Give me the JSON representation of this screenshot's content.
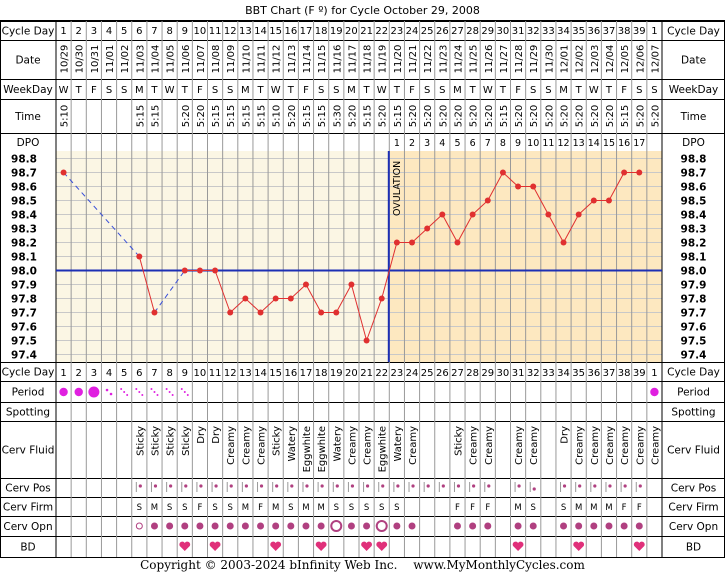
{
  "title": "BBT Chart (F º) for Cycle October 29, 2008",
  "row_labels": {
    "cycle_day": "Cycle Day",
    "date": "Date",
    "weekday": "WeekDay",
    "time": "Time",
    "dpo": "DPO",
    "period": "Period",
    "spotting": "Spotting",
    "cerv_fluid": "Cerv Fluid",
    "cerv_pos": "Cerv Pos",
    "cerv_firm": "Cerv Firm",
    "cerv_opn": "Cerv Opn",
    "bd": "BD"
  },
  "ovulation_label": "OVULATION",
  "colors": {
    "follicular_bg": "#fbf6e4",
    "luteal_bg": "#fde8c0",
    "grid": "#c8c8c8",
    "temp_line": "#e03030",
    "coverline": "#1c2fb4",
    "ovulation_line": "#1c2fb4",
    "period_dot": "#e020e0",
    "heart": "#e0307a",
    "symbol": "#b04080"
  },
  "chart_data": {
    "type": "line",
    "title": "BBT Chart (F º) for Cycle October 29, 2008",
    "ylim": [
      97.4,
      98.8
    ],
    "y_ticks": [
      "98.8",
      "98.7",
      "98.6",
      "98.5",
      "98.4",
      "98.3",
      "98.2",
      "98.1",
      "98.0",
      "97.9",
      "97.8",
      "97.7",
      "97.6",
      "97.5",
      "97.4"
    ],
    "coverline": 98.0,
    "ovulation_day": 22,
    "cycle_days": [
      "1",
      "2",
      "3",
      "4",
      "5",
      "6",
      "7",
      "8",
      "9",
      "10",
      "11",
      "12",
      "13",
      "14",
      "15",
      "16",
      "17",
      "18",
      "19",
      "20",
      "21",
      "22",
      "23",
      "24",
      "25",
      "26",
      "27",
      "28",
      "29",
      "30",
      "31",
      "32",
      "33",
      "34",
      "35",
      "36",
      "37",
      "38",
      "39",
      "1"
    ],
    "dates": [
      "10/29",
      "10/30",
      "10/31",
      "11/01",
      "11/02",
      "11/03",
      "11/04",
      "11/05",
      "11/06",
      "11/07",
      "11/08",
      "11/09",
      "11/10",
      "11/11",
      "11/12",
      "11/13",
      "11/14",
      "11/15",
      "11/16",
      "11/17",
      "11/18",
      "11/19",
      "11/20",
      "11/21",
      "11/22",
      "11/23",
      "11/24",
      "11/25",
      "11/26",
      "11/27",
      "11/28",
      "11/29",
      "11/30",
      "12/01",
      "12/02",
      "12/03",
      "12/04",
      "12/05",
      "12/06",
      "12/07"
    ],
    "weekdays": [
      "W",
      "T",
      "F",
      "S",
      "S",
      "M",
      "T",
      "W",
      "T",
      "F",
      "S",
      "S",
      "M",
      "T",
      "W",
      "T",
      "F",
      "S",
      "S",
      "M",
      "T",
      "W",
      "T",
      "F",
      "S",
      "S",
      "M",
      "T",
      "W",
      "T",
      "F",
      "S",
      "S",
      "M",
      "T",
      "W",
      "T",
      "F",
      "S",
      "S"
    ],
    "times": [
      "5:10",
      "",
      "",
      "",
      "",
      "5:15",
      "5:15",
      "",
      "5:20",
      "5:20",
      "5:15",
      "5:15",
      "5:15",
      "5:15",
      "5:10",
      "5:20",
      "5:15",
      "5:15",
      "5:30",
      "5:20",
      "5:15",
      "5:20",
      "5:15",
      "5:20",
      "5:20",
      "5:20",
      "5:20",
      "5:20",
      "5:20",
      "5:15",
      "5:20",
      "5:20",
      "5:20",
      "5:20",
      "5:20",
      "5:20",
      "5:20",
      "5:15",
      "5:20",
      "5:20"
    ],
    "dpo": [
      "",
      "",
      "",
      "",
      "",
      "",
      "",
      "",
      "",
      "",
      "",
      "",
      "",
      "",
      "",
      "",
      "",
      "",
      "",
      "",
      "",
      "",
      "1",
      "2",
      "3",
      "4",
      "5",
      "6",
      "7",
      "8",
      "9",
      "10",
      "11",
      "12",
      "13",
      "14",
      "15",
      "16",
      "17",
      ""
    ],
    "temps": [
      98.7,
      null,
      null,
      null,
      null,
      98.1,
      97.7,
      null,
      98.0,
      98.0,
      98.0,
      97.7,
      97.8,
      97.7,
      97.8,
      97.8,
      97.9,
      97.7,
      97.7,
      97.9,
      97.5,
      97.8,
      98.2,
      98.2,
      98.3,
      98.4,
      98.2,
      98.4,
      98.5,
      98.7,
      98.6,
      98.6,
      98.4,
      98.2,
      98.4,
      98.5,
      98.5,
      98.7,
      98.7,
      null
    ],
    "period": [
      "heavy",
      "heavy",
      "heavy",
      "light",
      "spot",
      "spot",
      "spot",
      "spot",
      "spot",
      "",
      "",
      "",
      "",
      "",
      "",
      "",
      "",
      "",
      "",
      "",
      "",
      "",
      "",
      "",
      "",
      "",
      "",
      "",
      "",
      "",
      "",
      "",
      "",
      "",
      "",
      "",
      "",
      "",
      "",
      "heavy"
    ],
    "cerv_fluid": [
      "",
      "",
      "",
      "",
      "",
      "Sticky",
      "Sticky",
      "Sticky",
      "Sticky",
      "Dry",
      "Dry",
      "Creamy",
      "Creamy",
      "Creamy",
      "Sticky",
      "Watery",
      "Eggwhite",
      "Eggwhite",
      "Watery",
      "Creamy",
      "Creamy",
      "Eggwhite",
      "Watery",
      "Creamy",
      "",
      "",
      "Sticky",
      "Creamy",
      "Creamy",
      "",
      "Creamy",
      "Creamy",
      "",
      "Dry",
      "Creamy",
      "Creamy",
      "Creamy",
      "Creamy",
      "Creamy",
      "Creamy"
    ],
    "cerv_pos": [
      "",
      "",
      "",
      "",
      "",
      "ml",
      "m",
      "m",
      "m",
      "m",
      "m",
      "m",
      "m",
      "m",
      "m",
      "m",
      "m",
      "m",
      "m",
      "m",
      "m",
      "m",
      "m",
      "m",
      "m",
      "m",
      "m",
      "m",
      "m",
      "",
      "m",
      "lo",
      "",
      "m",
      "m",
      "m",
      "m",
      "m",
      "m",
      ""
    ],
    "cerv_firm": [
      "",
      "",
      "",
      "",
      "",
      "S",
      "M",
      "S",
      "S",
      "F",
      "S",
      "S",
      "M",
      "F",
      "M",
      "S",
      "M",
      "M",
      "S",
      "S",
      "S",
      "S",
      "S",
      "",
      "",
      "",
      "F",
      "F",
      "F",
      "",
      "M",
      "S",
      "",
      "S",
      "M",
      "M",
      "M",
      "F",
      "F",
      ""
    ],
    "cerv_opn": [
      "",
      "",
      "",
      "",
      "",
      "s",
      "m",
      "m",
      "m",
      "m",
      "m",
      "m",
      "m",
      "m",
      "m",
      "m",
      "m",
      "m",
      "l",
      "m",
      "m",
      "l",
      "m",
      "m",
      "",
      "",
      "m",
      "m",
      "m",
      "",
      "m",
      "m",
      "",
      "m",
      "m",
      "m",
      "m",
      "m",
      "m",
      ""
    ],
    "bd": [
      "",
      "",
      "",
      "",
      "",
      "",
      "",
      "",
      "h",
      "",
      "h",
      "",
      "",
      "",
      "h",
      "",
      "",
      "h",
      "",
      "",
      "h",
      "h",
      "",
      "",
      "",
      "",
      "",
      "",
      "",
      "",
      "h",
      "",
      "",
      "",
      "h",
      "",
      "",
      "",
      "h",
      ""
    ]
  },
  "footer": {
    "copyright": "Copyright © 2003-2024 bInfinity Web Inc.",
    "site": "www.MyMonthlyCycles.com"
  }
}
